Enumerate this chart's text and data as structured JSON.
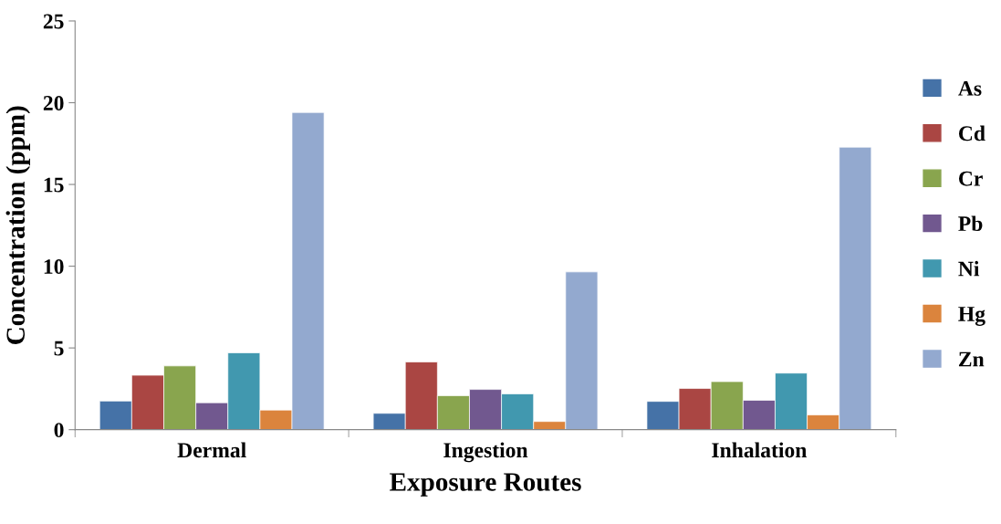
{
  "chart_data": {
    "type": "bar",
    "xlabel": "Exposure Routes",
    "ylabel": "Concentration (ppm)",
    "categories": [
      "Dermal",
      "Ingestion",
      "Inhalation"
    ],
    "series": [
      {
        "name": "As",
        "color": "#4572a7",
        "values": [
          1.75,
          1.0,
          1.73
        ]
      },
      {
        "name": "Cd",
        "color": "#aa4643",
        "values": [
          3.33,
          4.14,
          2.52
        ]
      },
      {
        "name": "Cr",
        "color": "#89a54e",
        "values": [
          3.9,
          2.08,
          2.94
        ]
      },
      {
        "name": "Pb",
        "color": "#71588f",
        "values": [
          1.65,
          2.46,
          1.8
        ]
      },
      {
        "name": "Ni",
        "color": "#4198af",
        "values": [
          4.7,
          2.19,
          3.46
        ]
      },
      {
        "name": "Hg",
        "color": "#db843d",
        "values": [
          1.2,
          0.5,
          0.9
        ]
      },
      {
        "name": "Zn",
        "color": "#93a9cf",
        "values": [
          19.4,
          9.65,
          17.28
        ]
      }
    ],
    "ylim": [
      0,
      25
    ],
    "yticks": [
      0,
      5,
      10,
      15,
      20,
      25
    ],
    "grid": false,
    "legend": "right"
  }
}
